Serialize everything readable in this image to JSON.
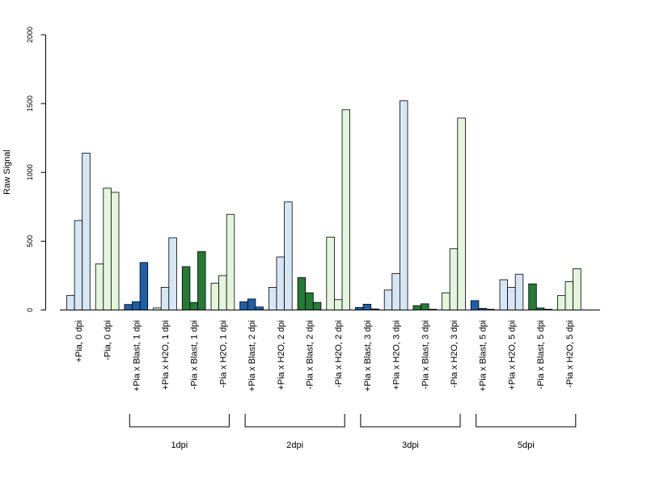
{
  "chart_data": {
    "type": "bar",
    "title": "",
    "ylabel": "Raw Signal",
    "xlabel": "",
    "ylim": [
      0,
      2000
    ],
    "yticks": [
      "0",
      "500",
      "1000",
      "1500",
      "2000"
    ],
    "grid": false,
    "colors": {
      "light_blue": "#d6e6f5",
      "light_green": "#e3f5dc",
      "dark_blue": "#1f5fa8",
      "dark_green": "#247a36"
    },
    "categories": [
      {
        "label": "+Pia, 0 dpi",
        "color": "light_blue",
        "values": [
          105,
          650,
          1140
        ]
      },
      {
        "label": "-Pia, 0 dpi",
        "color": "light_green",
        "values": [
          335,
          885,
          855
        ]
      },
      {
        "label": "+Pia x Blast, 1 dpi",
        "color": "dark_blue",
        "values": [
          40,
          60,
          345
        ]
      },
      {
        "label": "+Pia x H2O, 1 dpi",
        "color": "light_blue",
        "values": [
          15,
          165,
          525
        ]
      },
      {
        "label": "-Pia x Blast, 1 dpi",
        "color": "dark_green",
        "values": [
          315,
          55,
          425
        ]
      },
      {
        "label": "-Pia x H2O, 1 dpi",
        "color": "light_green",
        "values": [
          195,
          250,
          695
        ]
      },
      {
        "label": "+Pia x Blast, 2 dpi",
        "color": "dark_blue",
        "values": [
          60,
          80,
          22
        ]
      },
      {
        "label": "+Pia x H2O, 2 dpi",
        "color": "light_blue",
        "values": [
          165,
          385,
          785
        ]
      },
      {
        "label": "-Pia x Blast, 2 dpi",
        "color": "dark_green",
        "values": [
          235,
          125,
          55
        ]
      },
      {
        "label": "-Pia x H2O, 2 dpi",
        "color": "light_green",
        "values": [
          530,
          75,
          1455
        ]
      },
      {
        "label": "+Pia x Blast, 3 dpi",
        "color": "dark_blue",
        "values": [
          18,
          42,
          8
        ]
      },
      {
        "label": "+Pia x H2O, 3 dpi",
        "color": "light_blue",
        "values": [
          145,
          265,
          1520
        ]
      },
      {
        "label": "-Pia x Blast, 3 dpi",
        "color": "dark_green",
        "values": [
          32,
          45,
          5
        ]
      },
      {
        "label": "-Pia x H2O, 3 dpi",
        "color": "light_green",
        "values": [
          125,
          445,
          1395
        ]
      },
      {
        "label": "+Pia x Blast, 5 dpi",
        "color": "dark_blue",
        "values": [
          68,
          12,
          5
        ]
      },
      {
        "label": "+Pia x H2O, 5 dpi",
        "color": "light_blue",
        "values": [
          220,
          165,
          260
        ]
      },
      {
        "label": "-Pia x Blast, 5 dpi",
        "color": "dark_green",
        "values": [
          190,
          15,
          5
        ]
      },
      {
        "label": "-Pia x H2O, 5 dpi",
        "color": "light_green",
        "values": [
          105,
          205,
          300
        ]
      }
    ],
    "groups": [
      {
        "label": "1dpi",
        "from": 2,
        "to": 5
      },
      {
        "label": "2dpi",
        "from": 6,
        "to": 9
      },
      {
        "label": "3dpi",
        "from": 10,
        "to": 13
      },
      {
        "label": "5dpi",
        "from": 14,
        "to": 17
      }
    ]
  }
}
